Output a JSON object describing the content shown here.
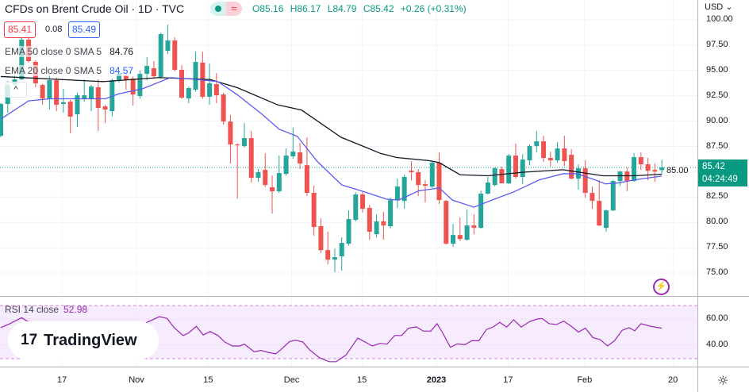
{
  "header": {
    "title": "CFDs on Brent Crude Oil · 1D · TVC",
    "status_dot_color": "#089981",
    "status_icon": "≈",
    "ohlc": {
      "o_label": "O",
      "o": "85.16",
      "h_label": "H",
      "h": "86.17",
      "l_label": "L",
      "l": "84.79",
      "c_label": "C",
      "c": "85.42",
      "change": "+0.26 (+0.31%)"
    }
  },
  "quote": {
    "bid": "85.41",
    "spread": "0.08",
    "ask": "85.49"
  },
  "indicators": {
    "ema50": {
      "label": "EMA 50 close 0 SMA 5",
      "value": "84.76",
      "color": "#131722"
    },
    "ema20": {
      "label": "EMA 20 close 0 SMA 5",
      "value": "84.57",
      "color": "#2962ff"
    },
    "rsi": {
      "label": "RSI 14 close",
      "value": "52.98",
      "color": "#9c27b0"
    }
  },
  "collapse_icon": "^",
  "price_axis": {
    "currency": "USD ⌄",
    "last_price": "85.42",
    "countdown": "04:24:49"
  },
  "logo": {
    "mark": "17",
    "text": "TradingView"
  },
  "bolt_icon": "⚡",
  "settings_icon": "☼",
  "colors": {
    "up": "#26a69a",
    "down": "#ef5350",
    "last_price": "#089981",
    "rsi_band": "#f3e5fc"
  },
  "chart_data": [
    {
      "type": "candlestick",
      "title": "CFDs on Brent Crude Oil · 1D · TVC",
      "ylim": [
        72.5,
        101.9
      ],
      "y_ticks": [
        "100.00",
        "97.50",
        "95.00",
        "92.50",
        "90.00",
        "87.50",
        "85.00",
        "82.50",
        "80.00",
        "77.50",
        "75.00"
      ],
      "x_ticks": [
        {
          "label": "17",
          "bar": 8.8
        },
        {
          "label": "Nov",
          "bar": 19.5
        },
        {
          "label": "15",
          "bar": 29.8
        },
        {
          "label": "Dec",
          "bar": 41.8
        },
        {
          "label": "15",
          "bar": 51.9
        },
        {
          "label": "2023",
          "bar": 62.6
        },
        {
          "label": "17",
          "bar": 72.9
        },
        {
          "label": "Feb",
          "bar": 83.9
        },
        {
          "label": "20",
          "bar": 96.6
        }
      ],
      "grid": true,
      "ohlc_fields": [
        "open",
        "high",
        "low",
        "close"
      ],
      "candles": [
        [
          88.55,
          91.8,
          88.4,
          91.69
        ],
        [
          91.69,
          93.96,
          90.83,
          93.57
        ],
        [
          93.57,
          94.51,
          93.49,
          94.12
        ],
        [
          94.12,
          98.2,
          94.04,
          98.04
        ],
        [
          98.04,
          98.3,
          95.8,
          95.92
        ],
        [
          95.85,
          96.0,
          93.34,
          93.73
        ],
        [
          93.57,
          93.7,
          91.61,
          92.24
        ],
        [
          92.24,
          94.67,
          91.14,
          94.04
        ],
        [
          94.04,
          94.3,
          90.98,
          91.61
        ],
        [
          91.69,
          93.18,
          90.83,
          91.85
        ],
        [
          91.92,
          92.1,
          88.79,
          90.44
        ],
        [
          90.67,
          92.79,
          89.42,
          92.55
        ],
        [
          92.24,
          94.12,
          91.92,
          92.55
        ],
        [
          92.24,
          93.6,
          90.98,
          93.41
        ],
        [
          93.34,
          94.12,
          89.02,
          91.3
        ],
        [
          91.45,
          91.6,
          89.81,
          91.14
        ],
        [
          90.98,
          94.2,
          90.44,
          94.04
        ],
        [
          94.04,
          95.0,
          93.8,
          94.67
        ],
        [
          94.51,
          94.7,
          93.1,
          94.04
        ],
        [
          94.2,
          94.4,
          91.53,
          92.63
        ],
        [
          92.47,
          95.0,
          92.2,
          94.67
        ],
        [
          94.67,
          96.32,
          94.04,
          95.45
        ],
        [
          95.22,
          95.92,
          94.28,
          94.43
        ],
        [
          94.36,
          98.75,
          94.2,
          98.59
        ],
        [
          96.94,
          99.53,
          96.63,
          97.96
        ],
        [
          97.96,
          98.28,
          94.9,
          95.06
        ],
        [
          95.06,
          95.53,
          92.2,
          92.32
        ],
        [
          92.24,
          93.4,
          91.77,
          93.26
        ],
        [
          93.1,
          96.86,
          92.9,
          95.84
        ],
        [
          95.77,
          96.86,
          92.2,
          92.4
        ],
        [
          92.4,
          95.69,
          91.61,
          93.73
        ],
        [
          93.65,
          94.75,
          91.77,
          92.55
        ],
        [
          92.63,
          92.8,
          89.65,
          89.96
        ],
        [
          89.96,
          90.59,
          85.81,
          87.69
        ],
        [
          87.69,
          87.8,
          82.36,
          87.61
        ],
        [
          87.53,
          89.81,
          87.38,
          88.32
        ],
        [
          88.32,
          89.02,
          83.93,
          84.4
        ],
        [
          84.4,
          85.26,
          84.01,
          84.95
        ],
        [
          85.18,
          86.83,
          83.5,
          83.69
        ],
        [
          83.46,
          84.63,
          80.87,
          83.07
        ],
        [
          83.07,
          86.59,
          82.9,
          84.87
        ],
        [
          84.79,
          87.3,
          84.6,
          86.59
        ],
        [
          86.52,
          89.34,
          86.28,
          86.99
        ],
        [
          86.91,
          87.85,
          85.26,
          85.81
        ],
        [
          85.65,
          88.4,
          82.6,
          82.91
        ],
        [
          82.91,
          83.61,
          78.68,
          79.54
        ],
        [
          79.62,
          80.4,
          76.95,
          77.26
        ],
        [
          77.26,
          79.07,
          75.85,
          76.32
        ],
        [
          76.32,
          77.42,
          75.07,
          76.56
        ],
        [
          76.64,
          78.52,
          75.23,
          77.97
        ],
        [
          77.89,
          81.18,
          77.7,
          80.32
        ],
        [
          80.24,
          82.99,
          80.09,
          82.75
        ],
        [
          82.75,
          82.99,
          80.95,
          81.34
        ],
        [
          81.42,
          81.73,
          78.28,
          79.07
        ],
        [
          78.83,
          80.79,
          78.52,
          80.09
        ],
        [
          80.09,
          81.03,
          78.28,
          79.69
        ],
        [
          79.62,
          82.44,
          79.4,
          82.2
        ],
        [
          82.2,
          84.32,
          81.42,
          83.54
        ],
        [
          82.12,
          84.71,
          81.34,
          84.48
        ],
        [
          85.1,
          86.05,
          84.16,
          84.95
        ],
        [
          84.95,
          85.26,
          82.6,
          83.69
        ],
        [
          83.77,
          84.16,
          81.97,
          83.61
        ],
        [
          83.54,
          86.0,
          83.4,
          85.89
        ],
        [
          85.89,
          86.91,
          81.81,
          82.2
        ],
        [
          82.12,
          82.2,
          77.81,
          77.89
        ],
        [
          77.89,
          79.85,
          77.58,
          78.75
        ],
        [
          78.75,
          80.48,
          78.13,
          78.36
        ],
        [
          78.28,
          81.26,
          78.2,
          79.69
        ],
        [
          79.69,
          80.79,
          78.83,
          79.46
        ],
        [
          79.46,
          83.14,
          79.38,
          82.83
        ],
        [
          82.83,
          84.48,
          82.75,
          83.93
        ],
        [
          83.69,
          85.42,
          83.54,
          85.34
        ],
        [
          85.26,
          85.5,
          83.85,
          83.85
        ],
        [
          83.85,
          86.75,
          83.77,
          86.59
        ],
        [
          86.59,
          87.77,
          84.32,
          84.48
        ],
        [
          84.48,
          86.75,
          83.77,
          86.2
        ],
        [
          86.12,
          87.69,
          85.65,
          87.53
        ],
        [
          87.53,
          89.02,
          86.91,
          88.0
        ],
        [
          88.0,
          88.55,
          85.97,
          86.36
        ],
        [
          86.36,
          86.99,
          85.5,
          86.12
        ],
        [
          86.12,
          87.93,
          85.89,
          87.3
        ],
        [
          87.3,
          88.55,
          85.57,
          86.05
        ],
        [
          86.67,
          87.22,
          84.24,
          84.32
        ],
        [
          84.32,
          85.73,
          83.22,
          85.34
        ],
        [
          85.34,
          86.12,
          82.44,
          82.91
        ],
        [
          82.91,
          83.54,
          81.34,
          82.12
        ],
        [
          82.12,
          84.16,
          79.62,
          79.69
        ],
        [
          79.46,
          81.26,
          79.07,
          81.18
        ],
        [
          81.18,
          84.2,
          81.1,
          84.08
        ],
        [
          84.08,
          85.1,
          83.61,
          85.02
        ],
        [
          85.02,
          85.42,
          83.07,
          84.08
        ],
        [
          84.08,
          86.83,
          84.01,
          86.44
        ],
        [
          86.44,
          86.91,
          85.18,
          85.73
        ],
        [
          85.73,
          86.36,
          84.16,
          85.1
        ],
        [
          85.18,
          85.81,
          84.01,
          85.02
        ],
        [
          85.16,
          86.17,
          84.79,
          85.42
        ]
      ],
      "last_price": 85.42,
      "series": [
        {
          "name": "EMA 50",
          "type": "line",
          "color": "#131722",
          "points": [
            [
              0,
              94.4
            ],
            [
              14.7,
              93.9
            ],
            [
              22.7,
              94.3
            ],
            [
              30.1,
              94.1
            ],
            [
              34,
              93.3
            ],
            [
              39.8,
              91.6
            ],
            [
              43.2,
              91.1
            ],
            [
              48.9,
              88.4
            ],
            [
              52.3,
              87.45
            ],
            [
              54.6,
              86.8
            ],
            [
              56.9,
              86.4
            ],
            [
              61.5,
              86.1
            ],
            [
              63,
              85.9
            ],
            [
              66,
              84.7
            ],
            [
              70,
              84.6
            ],
            [
              75.1,
              84.95
            ],
            [
              80.8,
              85.2
            ],
            [
              86.5,
              84.6
            ],
            [
              91.1,
              84.6
            ],
            [
              95,
              84.76
            ]
          ]
        },
        {
          "name": "EMA 20",
          "type": "line",
          "color": "#5b5bf0",
          "points": [
            [
              0,
              90.2
            ],
            [
              4,
              92.0
            ],
            [
              7,
              92.2
            ],
            [
              10,
              92.2
            ],
            [
              15,
              92.2
            ],
            [
              17,
              92.7
            ],
            [
              20.4,
              93.2
            ],
            [
              24.4,
              94.3
            ],
            [
              28.4,
              94.1
            ],
            [
              31.2,
              93.9
            ],
            [
              34,
              92.6
            ],
            [
              37.5,
              90.7
            ],
            [
              40,
              89.2
            ],
            [
              42.6,
              88.5
            ],
            [
              45.5,
              86.0
            ],
            [
              49,
              83.7
            ],
            [
              52.3,
              83.0
            ],
            [
              55.4,
              82.3
            ],
            [
              57.2,
              82.2
            ],
            [
              60,
              83.1
            ],
            [
              63,
              83.4
            ],
            [
              64.9,
              82.2
            ],
            [
              68,
              81.5
            ],
            [
              70.6,
              82.2
            ],
            [
              73.7,
              83.0
            ],
            [
              77.4,
              84.2
            ],
            [
              80.8,
              84.8
            ],
            [
              82.8,
              84.8
            ],
            [
              85.4,
              84.2
            ],
            [
              86.9,
              83.8
            ],
            [
              88.8,
              83.9
            ],
            [
              91.1,
              84.2
            ],
            [
              95,
              84.57
            ]
          ]
        }
      ]
    },
    {
      "type": "line",
      "title": "RSI 14 close",
      "y_ticks": [
        "60.00",
        "40.00"
      ],
      "bands": [
        70,
        30
      ],
      "name": "RSI 14 close",
      "points": [
        [
          0,
          53.4
        ],
        [
          1.3,
          56.4
        ],
        [
          3,
          61
        ],
        [
          4.1,
          57.4
        ],
        [
          10,
          50
        ],
        [
          15,
          52
        ],
        [
          20,
          55
        ],
        [
          22.8,
          61.8
        ],
        [
          23.9,
          60.4
        ],
        [
          24.9,
          53.4
        ],
        [
          26.2,
          47.4
        ],
        [
          27,
          49.4
        ],
        [
          28.1,
          54.4
        ],
        [
          29.1,
          47.8
        ],
        [
          30.1,
          50.4
        ],
        [
          31.2,
          47.4
        ],
        [
          32.2,
          42.4
        ],
        [
          33.3,
          39.4
        ],
        [
          34.3,
          39.4
        ],
        [
          35,
          40.8
        ],
        [
          36.4,
          35
        ],
        [
          37.4,
          36
        ],
        [
          38.5,
          34.4
        ],
        [
          39.5,
          33.4
        ],
        [
          40.2,
          36.4
        ],
        [
          41.5,
          42.8
        ],
        [
          42.4,
          43.8
        ],
        [
          43.4,
          42.4
        ],
        [
          44.4,
          36.4
        ],
        [
          45.8,
          30.4
        ],
        [
          47.2,
          27.4
        ],
        [
          48.2,
          27.4
        ],
        [
          49.6,
          32.4
        ],
        [
          51.3,
          45.4
        ],
        [
          53.4,
          39.4
        ],
        [
          54.5,
          41.4
        ],
        [
          55.5,
          40.8
        ],
        [
          56.6,
          47.4
        ],
        [
          57.6,
          47.4
        ],
        [
          58.6,
          53
        ],
        [
          59.7,
          54
        ],
        [
          60.7,
          50.8
        ],
        [
          61.8,
          50.8
        ],
        [
          62.7,
          56.4
        ],
        [
          63.5,
          49.4
        ],
        [
          64.6,
          38.4
        ],
        [
          65.6,
          41
        ],
        [
          66.7,
          40.4
        ],
        [
          67.7,
          43.4
        ],
        [
          68.7,
          43.4
        ],
        [
          69.8,
          52
        ],
        [
          70.8,
          54
        ],
        [
          71.7,
          57.4
        ],
        [
          72.7,
          53.8
        ],
        [
          73.7,
          59.4
        ],
        [
          74.8,
          53.8
        ],
        [
          76,
          58
        ],
        [
          77.1,
          60
        ],
        [
          77.8,
          60.4
        ],
        [
          78.8,
          56.4
        ],
        [
          79.9,
          55.8
        ],
        [
          80.9,
          58.4
        ],
        [
          82,
          54.4
        ],
        [
          83,
          50
        ],
        [
          84,
          53
        ],
        [
          85.1,
          45.8
        ],
        [
          86.1,
          44.4
        ],
        [
          87.2,
          39.4
        ],
        [
          88.2,
          43.4
        ],
        [
          89.3,
          51.4
        ],
        [
          90.3,
          53.4
        ],
        [
          91.1,
          51
        ],
        [
          92,
          56.4
        ],
        [
          93.4,
          54.4
        ],
        [
          94.5,
          53.4
        ],
        [
          95,
          52.98
        ]
      ]
    }
  ]
}
